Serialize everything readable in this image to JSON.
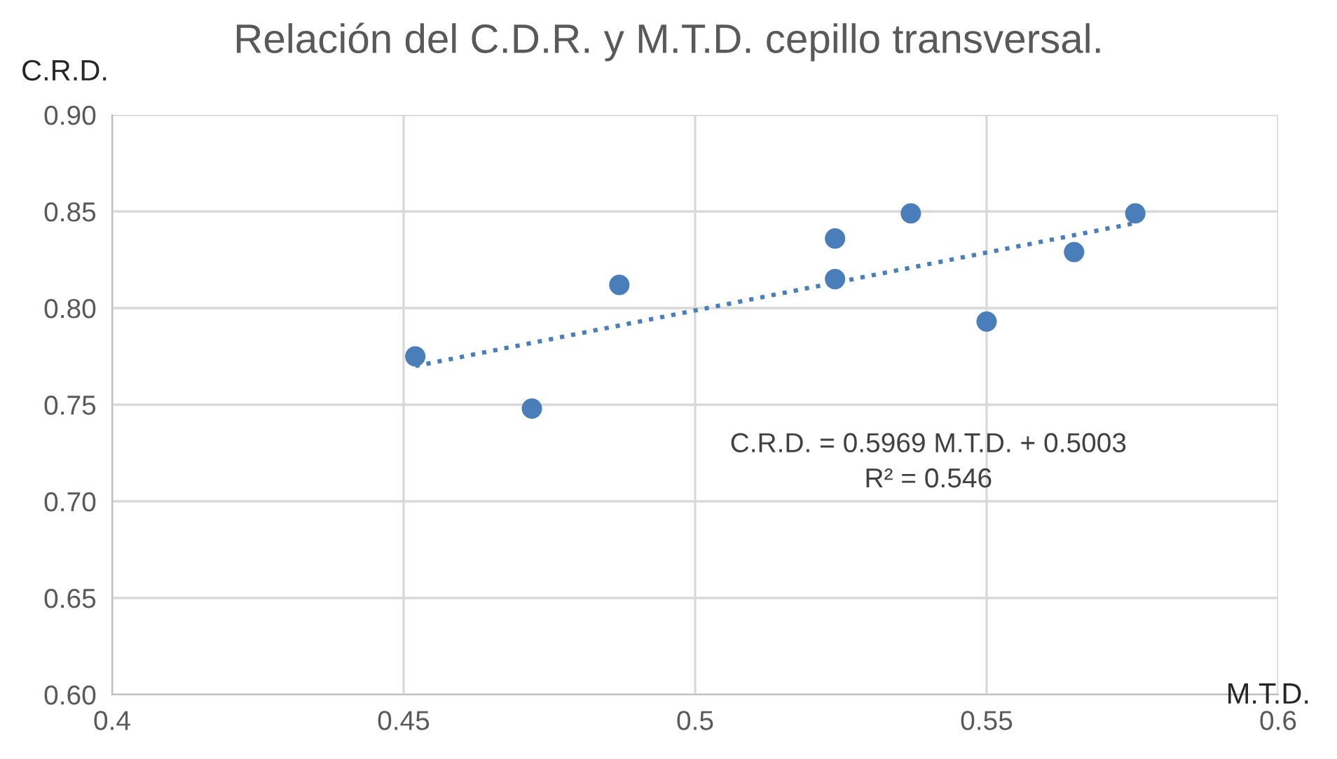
{
  "chart_data": {
    "type": "scatter",
    "title": "Relación del C.D.R. y M.T.D. cepillo transversal.",
    "xlabel": "M.T.D.",
    "ylabel": "C.R.D.",
    "series": [
      {
        "color": "#4a7ebb",
        "marker": "circle",
        "x": [
          0.452,
          0.472,
          0.487,
          0.524,
          0.524,
          0.537,
          0.55,
          0.565,
          0.5755
        ],
        "values": [
          0.775,
          0.748,
          0.812,
          0.836,
          0.815,
          0.849,
          0.793,
          0.829,
          0.849
        ]
      },
      {
        "type": "line",
        "color": "#4a7ebb",
        "line_style": "dotted",
        "x": [
          0.452,
          0.5755
        ],
        "values": [
          0.77,
          0.844
        ]
      }
    ],
    "annotations": [
      "C.R.D. = 0.5969 M.T.D. + 0.5003\nR² = 0.546"
    ],
    "xlim": [
      0.4,
      0.6
    ],
    "xticks": [
      0.4,
      0.45,
      0.5,
      0.55,
      0.6
    ],
    "ylim": [
      0.6,
      0.9
    ],
    "yticks": [
      {
        "value": 0.6,
        "label": "0.60"
      },
      {
        "value": 0.65,
        "label": "0.65"
      },
      {
        "value": 0.7,
        "label": "0.70"
      },
      {
        "value": 0.75,
        "label": "0.75"
      },
      {
        "value": 0.8,
        "label": "0.80"
      },
      {
        "value": 0.85,
        "label": "0.85"
      },
      {
        "value": 0.9,
        "label": "0.90"
      }
    ],
    "grid": true,
    "legend": false
  }
}
